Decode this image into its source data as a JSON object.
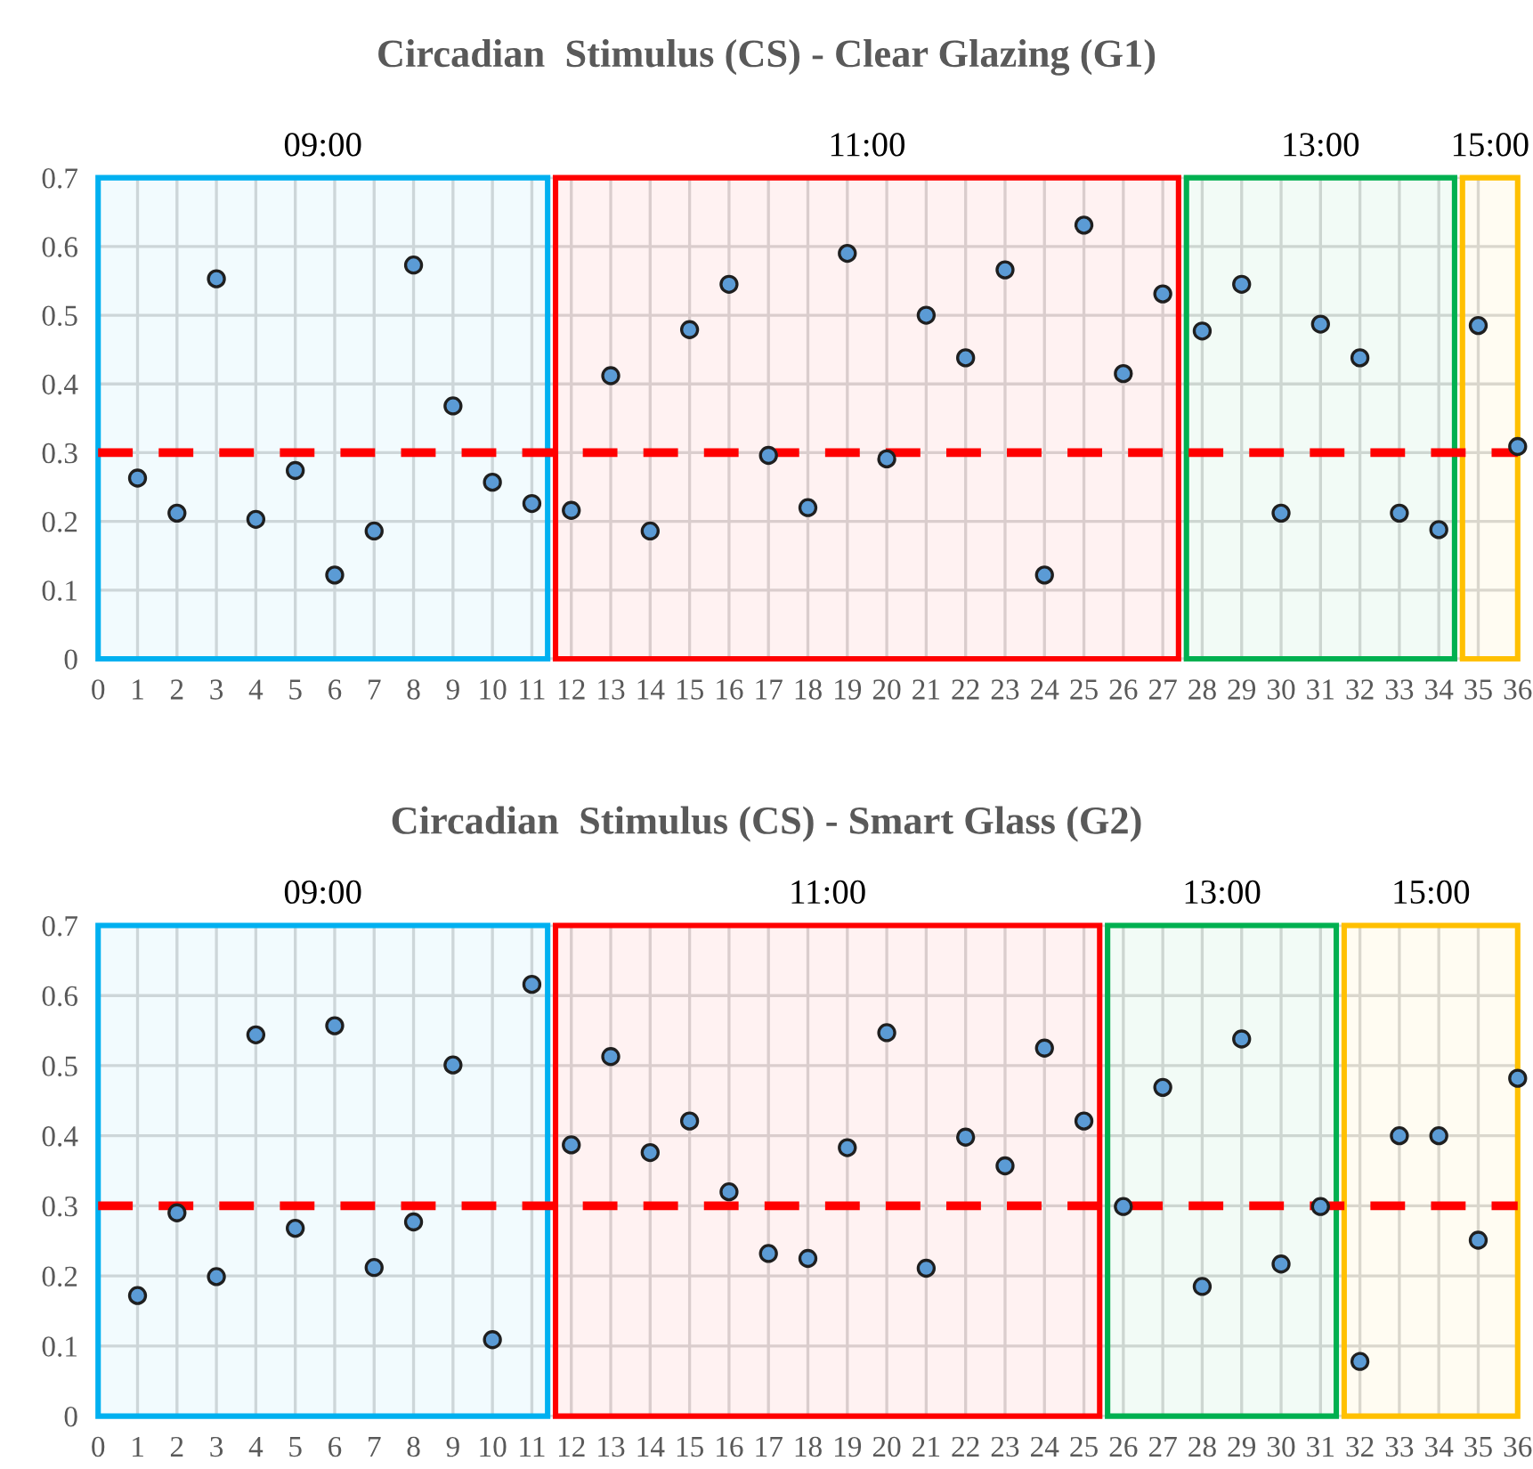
{
  "chart_data": [
    {
      "type": "scatter",
      "title": "Circadian  Stimulus (CS) - Clear Glazing (G1)",
      "x": [
        1,
        2,
        3,
        4,
        5,
        6,
        7,
        8,
        9,
        10,
        11,
        12,
        13,
        14,
        15,
        16,
        17,
        18,
        19,
        20,
        21,
        22,
        23,
        24,
        25,
        26,
        27,
        28,
        29,
        30,
        31,
        32,
        33,
        34,
        35,
        36
      ],
      "series": [
        {
          "color": "#5b9bd5",
          "values": [
            0.263,
            0.212,
            0.553,
            0.203,
            0.274,
            0.122,
            0.186,
            0.573,
            0.368,
            0.257,
            0.226,
            0.216,
            0.412,
            0.186,
            0.479,
            0.545,
            0.296,
            0.22,
            0.59,
            0.291,
            0.5,
            0.438,
            0.566,
            0.122,
            0.631,
            0.415,
            0.531,
            0.477,
            0.545,
            0.212,
            0.487,
            0.438,
            0.212,
            0.188,
            0.485,
            0.309
          ]
        }
      ],
      "xlim": [
        0,
        36
      ],
      "xticks": [
        0,
        1,
        2,
        3,
        4,
        5,
        6,
        7,
        8,
        9,
        10,
        11,
        12,
        13,
        14,
        15,
        16,
        17,
        18,
        19,
        20,
        21,
        22,
        23,
        24,
        25,
        26,
        27,
        28,
        29,
        30,
        31,
        32,
        33,
        34,
        35,
        36
      ],
      "ylim": [
        0,
        0.7
      ],
      "yticks": [
        0,
        0.1,
        0.2,
        0.3,
        0.4,
        0.5,
        0.6,
        0.7
      ],
      "ref_lines": [
        {
          "axis": "y",
          "value": 0.3,
          "color": "#ff0000",
          "line_style": "dashed"
        }
      ],
      "bands": [
        {
          "axis": "x",
          "from": 0,
          "to": 11.4,
          "label": "09:00",
          "color": "#00b0f0"
        },
        {
          "axis": "x",
          "from": 11.6,
          "to": 27.4,
          "label": "11:00",
          "color": "#ff0000"
        },
        {
          "axis": "x",
          "from": 27.6,
          "to": 34.4,
          "label": "13:00",
          "color": "#00b050"
        },
        {
          "axis": "x",
          "from": 34.6,
          "to": 36,
          "label": "15:00",
          "color": "#ffc000"
        }
      ],
      "marker": "circle",
      "grid": true
    },
    {
      "type": "scatter",
      "title": "Circadian  Stimulus (CS) - Smart Glass (G2)",
      "x": [
        1,
        2,
        3,
        4,
        5,
        6,
        7,
        8,
        9,
        10,
        11,
        12,
        13,
        14,
        15,
        16,
        17,
        18,
        19,
        20,
        21,
        22,
        23,
        24,
        25,
        26,
        27,
        28,
        29,
        30,
        31,
        32,
        33,
        34,
        35,
        36
      ],
      "series": [
        {
          "color": "#5b9bd5",
          "values": [
            0.172,
            0.29,
            0.199,
            0.544,
            0.268,
            0.557,
            0.212,
            0.277,
            0.501,
            0.109,
            0.616,
            0.387,
            0.513,
            0.376,
            0.421,
            0.32,
            0.232,
            0.225,
            0.383,
            0.547,
            0.211,
            0.398,
            0.357,
            0.525,
            0.421,
            0.299,
            0.469,
            0.185,
            0.538,
            0.217,
            0.299,
            0.078,
            0.4,
            0.4,
            0.251,
            0.482
          ]
        }
      ],
      "xlim": [
        0,
        36
      ],
      "xticks": [
        0,
        1,
        2,
        3,
        4,
        5,
        6,
        7,
        8,
        9,
        10,
        11,
        12,
        13,
        14,
        15,
        16,
        17,
        18,
        19,
        20,
        21,
        22,
        23,
        24,
        25,
        26,
        27,
        28,
        29,
        30,
        31,
        32,
        33,
        34,
        35,
        36
      ],
      "ylim": [
        0,
        0.7
      ],
      "yticks": [
        0,
        0.1,
        0.2,
        0.3,
        0.4,
        0.5,
        0.6,
        0.7
      ],
      "ref_lines": [
        {
          "axis": "y",
          "value": 0.3,
          "color": "#ff0000",
          "line_style": "dashed"
        }
      ],
      "bands": [
        {
          "axis": "x",
          "from": 0,
          "to": 11.4,
          "label": "09:00",
          "color": "#00b0f0"
        },
        {
          "axis": "x",
          "from": 11.6,
          "to": 25.4,
          "label": "11:00",
          "color": "#ff0000"
        },
        {
          "axis": "x",
          "from": 25.6,
          "to": 31.4,
          "label": "13:00",
          "color": "#00b050"
        },
        {
          "axis": "x",
          "from": 31.6,
          "to": 36,
          "label": "15:00",
          "color": "#ffc000"
        }
      ],
      "marker": "circle",
      "grid": true
    }
  ]
}
